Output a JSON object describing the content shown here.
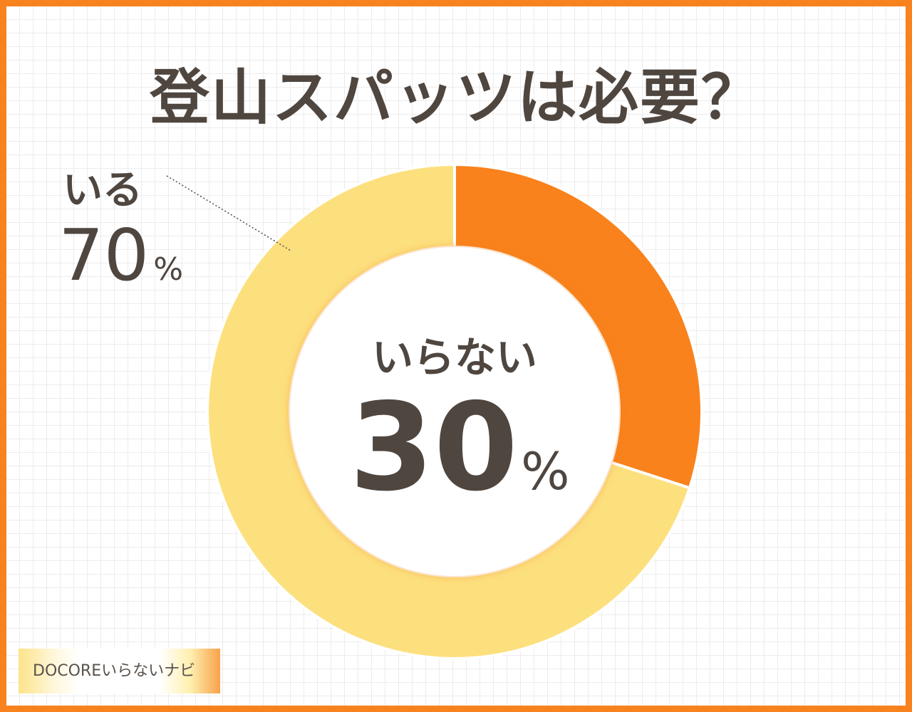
{
  "title": "登山スパッツは必要？",
  "chart_data": {
    "type": "pie",
    "style": "donut",
    "categories": [
      "いらない",
      "いる"
    ],
    "values": [
      30,
      70
    ],
    "unit": "%",
    "colors": [
      "#F9821C",
      "#FDE07E"
    ],
    "labels": [
      {
        "name": "いらない",
        "value": "30",
        "unit": "%"
      },
      {
        "name": "いる",
        "value": "70",
        "unit": "%"
      }
    ]
  },
  "logo": "DOCOREいらないナビ",
  "colors": {
    "border": "#F7821E",
    "text": "#4F4640"
  }
}
